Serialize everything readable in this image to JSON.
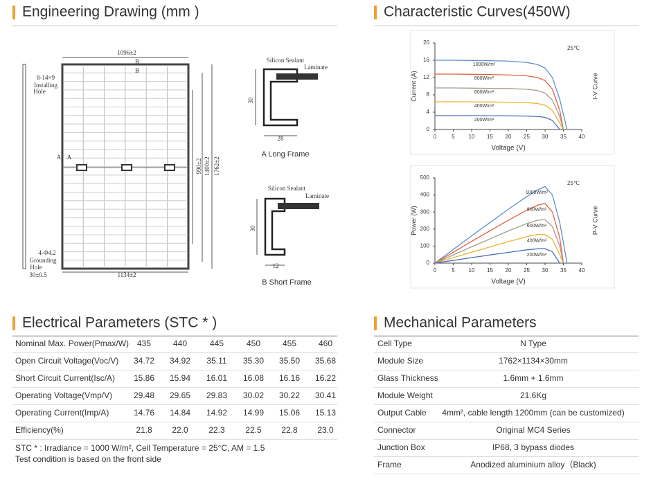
{
  "engineering_drawing": {
    "title": "Engineering Drawing (mm )",
    "labels": [
      "1096±2",
      "B",
      "B",
      "8-14×9",
      "Installing",
      "Hole",
      "A",
      "A",
      "990±2",
      "1400±2",
      "1762±2",
      "4-Φ4.2",
      "Grounding",
      "Hole",
      "30±0.5",
      "1134±2"
    ],
    "frame_a": {
      "labels": [
        "Silicon Sealant",
        "Laminate",
        "30",
        "28"
      ],
      "caption": "A Long Frame"
    },
    "frame_b": {
      "labels": [
        "Silicon Sealant",
        "Laminate",
        "30",
        "12"
      ],
      "caption": "B Short Frame"
    }
  },
  "characteristic_curves": {
    "title": "Characteristic Curves(450W)"
  },
  "chart_data": [
    {
      "type": "line",
      "title": "I-V Curve",
      "note": "25℃",
      "ylabel": "Current (A)",
      "xlabel": "Voltage (V)",
      "x": [
        0,
        5,
        10,
        15,
        20,
        25,
        28,
        30,
        32,
        34,
        35,
        36
      ],
      "xlim": [
        0,
        40
      ],
      "xticks": [
        0,
        5,
        10,
        15,
        20,
        25,
        30,
        35,
        40
      ],
      "ylim": [
        0,
        20
      ],
      "yticks": [
        0,
        4,
        8,
        12,
        16,
        20
      ],
      "series": [
        {
          "name": "1000W/m²",
          "color": "#5b8fd0",
          "values": [
            16,
            16,
            15.95,
            15.9,
            15.8,
            15.5,
            15,
            14.2,
            12,
            7,
            3.5,
            0
          ]
        },
        {
          "name": "800W/m²",
          "color": "#e0603c",
          "values": [
            12.8,
            12.8,
            12.75,
            12.7,
            12.6,
            12.4,
            12,
            11.3,
            9.3,
            4.5,
            0,
            null
          ]
        },
        {
          "name": "600W/m²",
          "color": "#a59a8a",
          "values": [
            9.6,
            9.6,
            9.55,
            9.5,
            9.45,
            9.3,
            9,
            8.4,
            6.8,
            3,
            0,
            null
          ]
        },
        {
          "name": "400W/m²",
          "color": "#f0b030",
          "values": [
            6.4,
            6.4,
            6.38,
            6.35,
            6.3,
            6.2,
            6,
            5.6,
            4.4,
            1.5,
            0,
            null
          ]
        },
        {
          "name": "200W/m²",
          "color": "#4a6fc0",
          "values": [
            3.2,
            3.2,
            3.2,
            3.18,
            3.15,
            3.1,
            3,
            2.8,
            2.1,
            0,
            null,
            null
          ]
        }
      ]
    },
    {
      "type": "line",
      "title": "P-V Curve",
      "note": "25℃",
      "ylabel": "Power (W)",
      "xlabel": "Voltage (V)",
      "x": [
        0,
        5,
        10,
        15,
        20,
        25,
        28,
        30,
        32,
        34,
        35,
        36
      ],
      "xlim": [
        0,
        40
      ],
      "xticks": [
        0,
        5,
        10,
        15,
        20,
        25,
        30,
        35,
        40
      ],
      "ylim": [
        0,
        500
      ],
      "yticks": [
        0,
        100,
        200,
        300,
        400,
        500
      ],
      "series": [
        {
          "name": "1000W/m²",
          "color": "#5b8fd0",
          "values": [
            0,
            80,
            160,
            238,
            316,
            390,
            430,
            450,
            400,
            240,
            120,
            0
          ]
        },
        {
          "name": "800W/m²",
          "color": "#e0603c",
          "values": [
            0,
            64,
            128,
            190,
            252,
            310,
            340,
            350,
            300,
            150,
            0,
            null
          ]
        },
        {
          "name": "600W/m²",
          "color": "#a59a8a",
          "values": [
            0,
            48,
            96,
            142,
            189,
            232,
            252,
            255,
            215,
            100,
            0,
            null
          ]
        },
        {
          "name": "400W/m²",
          "color": "#f0b030",
          "values": [
            0,
            32,
            64,
            95,
            126,
            155,
            168,
            168,
            140,
            50,
            0,
            null
          ]
        },
        {
          "name": "200W/m²",
          "color": "#4a6fc0",
          "values": [
            0,
            16,
            32,
            48,
            63,
            78,
            84,
            84,
            67,
            0,
            null,
            null
          ]
        }
      ]
    }
  ],
  "electrical_parameters": {
    "title": "Electrical Parameters (STC * )",
    "rows": [
      [
        "Nominal Max. Power(Pmax/W)",
        "435",
        "440",
        "445",
        "450",
        "455",
        "460"
      ],
      [
        "Open Circuit Voltage(Voc/V)",
        "34.72",
        "34.92",
        "35.11",
        "35.30",
        "35.50",
        "35.68"
      ],
      [
        "Short Circuit Current(Isc/A)",
        "15.86",
        "15.94",
        "16.01",
        "16.08",
        "16.16",
        "16.22"
      ],
      [
        "Operating Voltage(Vmp/V)",
        "29.48",
        "29.65",
        "29.83",
        "30.02",
        "30.22",
        "30.41"
      ],
      [
        "Operating Current(Imp/A)",
        "14.76",
        "14.84",
        "14.92",
        "14.99",
        "15.06",
        "15.13"
      ],
      [
        "Efficiency(%)",
        "21.8",
        "22.0",
        "22.3",
        "22.5",
        "22.8",
        "23.0"
      ]
    ],
    "notes": [
      "STC * : Irradiance = 1000 W/m², Cell Temperature = 25°C, AM = 1.5",
      "Test condition is based on the front side"
    ]
  },
  "mechanical_parameters": {
    "title": "Mechanical Parameters",
    "rows": [
      [
        "Cell Type",
        "N Type"
      ],
      [
        "Module Size",
        "1762×1134×30mm"
      ],
      [
        "Glass Thickness",
        "1.6mm + 1.6mm"
      ],
      [
        "Module Weight",
        "21.6Kg"
      ],
      [
        "Output Cable",
        "4mm², cable length 1200mm (can be customized)"
      ],
      [
        "Connector",
        "Original MC4 Series"
      ],
      [
        "Junction Box",
        "IP68, 3 bypass diodes"
      ],
      [
        "Frame",
        "Anodized aluminium alloy（Black)"
      ]
    ]
  }
}
